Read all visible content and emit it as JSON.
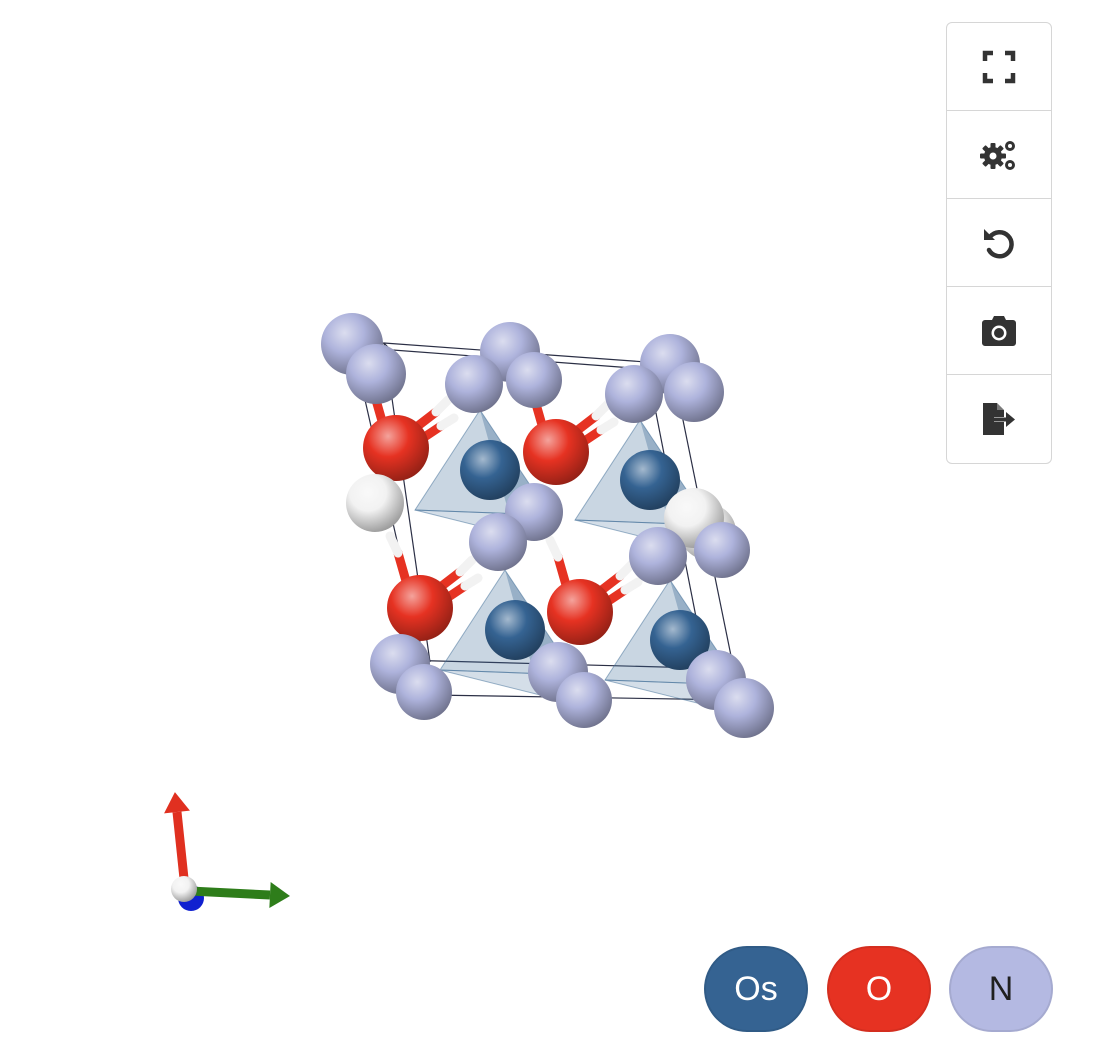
{
  "toolbar": {
    "buttons": [
      {
        "name": "fullscreen-button",
        "icon": "fullscreen-icon"
      },
      {
        "name": "settings-button",
        "icon": "gears-icon"
      },
      {
        "name": "reset-view-button",
        "icon": "rotate-left-icon"
      },
      {
        "name": "screenshot-button",
        "icon": "camera-icon"
      },
      {
        "name": "export-button",
        "icon": "file-export-icon"
      }
    ]
  },
  "legend": {
    "elements": [
      {
        "symbol": "Os",
        "color": "#356392",
        "text_color": "#ffffff"
      },
      {
        "symbol": "O",
        "color": "#e63222",
        "text_color": "#ffffff"
      },
      {
        "symbol": "N",
        "color": "#b4b9e2",
        "text_color": "#1f1f1f"
      }
    ]
  },
  "structure": {
    "colors": {
      "Os": "#356392",
      "O": "#e63222",
      "N": "#aeb3dc",
      "H": "#f2f2f2",
      "polyhedron": "#3d6b96",
      "cell_edge": "#2b2f45"
    }
  },
  "axes": {
    "colors": {
      "a": "#e03020",
      "b": "#2e7d1a",
      "c": "#1020d0"
    }
  }
}
